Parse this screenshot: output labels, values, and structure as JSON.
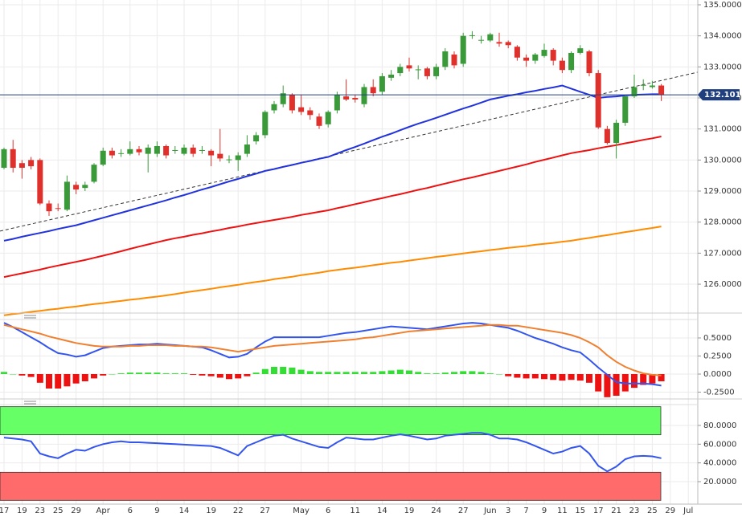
{
  "chart_data": [
    {
      "type": "candlestick",
      "categories": [
        "17",
        null,
        "19",
        null,
        "23",
        null,
        "25",
        null,
        "29",
        null,
        null,
        "Apr",
        null,
        null,
        "6",
        null,
        null,
        "9",
        null,
        null,
        "14",
        null,
        null,
        "19",
        null,
        null,
        "22",
        null,
        null,
        "27",
        null,
        null,
        null,
        "May",
        null,
        null,
        "6",
        null,
        null,
        "11",
        null,
        null,
        "14",
        null,
        null,
        "19",
        null,
        null,
        "24",
        null,
        null,
        "27",
        null,
        null,
        "Jun",
        null,
        "3",
        null,
        "7",
        null,
        "9",
        null,
        "11",
        null,
        "15",
        null,
        "17",
        null,
        "21",
        null,
        "23",
        null,
        "25",
        null,
        "29",
        null,
        "Jul"
      ],
      "open": [
        129.75,
        130.35,
        129.9,
        130.0,
        130.0,
        128.6,
        128.45,
        128.4,
        129.2,
        129.1,
        129.3,
        129.85,
        130.3,
        130.2,
        130.2,
        130.35,
        130.2,
        130.2,
        130.45,
        130.3,
        130.2,
        130.4,
        130.3,
        130.3,
        130.2,
        130.0,
        130.0,
        130.2,
        130.6,
        130.8,
        131.6,
        131.8,
        132.1,
        131.7,
        131.6,
        131.4,
        131.15,
        131.6,
        132.05,
        132.0,
        131.8,
        132.35,
        132.2,
        132.65,
        132.8,
        133.05,
        132.9,
        132.95,
        132.7,
        133.0,
        133.4,
        133.1,
        134.0,
        133.85,
        133.85,
        133.8,
        133.8,
        133.65,
        133.3,
        133.2,
        133.35,
        133.55,
        133.2,
        132.9,
        133.45,
        133.5,
        132.8,
        131.0,
        130.55,
        131.2,
        132.05,
        132.4,
        132.35,
        132.4,
        null,
        null,
        null
      ],
      "high": [
        130.4,
        130.65,
        130.0,
        130.1,
        130.05,
        128.7,
        128.6,
        129.5,
        129.3,
        129.3,
        129.9,
        130.4,
        130.4,
        130.35,
        130.6,
        130.45,
        130.5,
        130.6,
        130.5,
        130.45,
        130.5,
        130.5,
        130.45,
        130.35,
        131.0,
        130.15,
        130.25,
        130.8,
        130.9,
        131.6,
        131.9,
        132.4,
        132.15,
        132.1,
        131.7,
        131.5,
        131.6,
        132.2,
        132.6,
        132.1,
        132.45,
        132.6,
        132.8,
        132.9,
        133.1,
        133.3,
        133.05,
        133.0,
        133.1,
        133.6,
        133.5,
        134.1,
        134.15,
        134.0,
        134.1,
        134.1,
        133.85,
        133.7,
        133.4,
        133.45,
        133.75,
        133.6,
        133.3,
        133.5,
        133.7,
        133.55,
        132.9,
        131.1,
        131.3,
        132.1,
        132.75,
        132.6,
        132.55,
        132.45,
        null,
        null,
        null
      ],
      "low": [
        129.7,
        129.6,
        129.4,
        129.7,
        128.55,
        128.2,
        128.35,
        128.35,
        128.9,
        129.0,
        129.25,
        129.8,
        130.05,
        130.1,
        130.15,
        130.15,
        129.6,
        130.1,
        130.05,
        130.2,
        130.15,
        130.1,
        130.2,
        129.8,
        129.95,
        129.9,
        129.65,
        130.1,
        130.5,
        130.7,
        131.5,
        131.7,
        131.5,
        131.45,
        131.3,
        131.0,
        131.05,
        131.5,
        131.9,
        131.85,
        131.7,
        132.05,
        132.1,
        132.55,
        132.7,
        132.85,
        132.6,
        132.6,
        132.6,
        132.9,
        132.95,
        133.0,
        133.9,
        133.75,
        133.8,
        133.65,
        133.6,
        133.2,
        133.0,
        133.1,
        133.3,
        133.05,
        132.8,
        132.8,
        133.4,
        132.7,
        131.0,
        130.5,
        130.05,
        131.1,
        132.0,
        132.25,
        132.3,
        131.9,
        null,
        null,
        null
      ],
      "close": [
        130.35,
        129.75,
        129.75,
        129.8,
        128.6,
        128.35,
        128.43,
        129.3,
        129.05,
        129.2,
        129.85,
        130.3,
        130.15,
        130.22,
        130.35,
        130.25,
        130.4,
        130.45,
        130.15,
        130.32,
        130.4,
        130.2,
        130.32,
        130.15,
        130.05,
        130.02,
        130.15,
        130.5,
        130.8,
        131.55,
        131.8,
        132.15,
        131.6,
        131.55,
        131.45,
        131.1,
        131.55,
        132.1,
        131.95,
        131.95,
        132.35,
        132.15,
        132.7,
        132.75,
        133.0,
        132.95,
        132.92,
        132.7,
        133.0,
        133.5,
        133.05,
        134.0,
        134.02,
        133.87,
        134.05,
        133.75,
        133.7,
        133.3,
        133.2,
        133.4,
        133.55,
        133.2,
        132.9,
        133.45,
        133.6,
        132.8,
        131.05,
        130.55,
        131.2,
        132.05,
        132.35,
        132.42,
        132.4,
        132.1,
        null,
        null,
        null
      ],
      "up_color": "#3a9a3a",
      "down_color": "#e0302b",
      "lines": [
        {
          "color": "#2233dd",
          "values": [
            127.4,
            127.46,
            127.53,
            127.59,
            127.65,
            127.71,
            127.78,
            127.84,
            127.9,
            127.98,
            128.06,
            128.14,
            128.22,
            128.3,
            128.38,
            128.46,
            128.54,
            128.62,
            128.7,
            128.79,
            128.87,
            128.96,
            129.05,
            129.13,
            129.22,
            129.31,
            129.39,
            129.48,
            129.56,
            129.65,
            129.71,
            129.78,
            129.84,
            129.91,
            129.97,
            130.04,
            130.1,
            130.21,
            130.32,
            130.42,
            130.53,
            130.64,
            130.75,
            130.85,
            130.96,
            131.07,
            131.17,
            131.26,
            131.36,
            131.46,
            131.56,
            131.66,
            131.75,
            131.85,
            131.95,
            132.01,
            132.07,
            132.12,
            132.18,
            132.23,
            132.29,
            132.34,
            132.4,
            132.3,
            132.2,
            132.1,
            132.0,
            132.03,
            132.05,
            132.08,
            132.1,
            132.11,
            132.12,
            132.12,
            null,
            null,
            null
          ]
        },
        {
          "color": "#ee1111",
          "values": [
            126.23,
            126.29,
            126.35,
            126.41,
            126.47,
            126.54,
            126.6,
            126.66,
            126.72,
            126.78,
            126.85,
            126.92,
            126.99,
            127.06,
            127.14,
            127.21,
            127.28,
            127.35,
            127.42,
            127.48,
            127.53,
            127.59,
            127.64,
            127.7,
            127.75,
            127.81,
            127.86,
            127.92,
            127.97,
            128.02,
            128.07,
            128.12,
            128.17,
            128.23,
            128.28,
            128.33,
            128.38,
            128.45,
            128.51,
            128.58,
            128.64,
            128.71,
            128.77,
            128.84,
            128.9,
            128.97,
            129.04,
            129.1,
            129.17,
            129.24,
            129.31,
            129.38,
            129.44,
            129.51,
            129.58,
            129.65,
            129.72,
            129.79,
            129.86,
            129.94,
            130.01,
            130.08,
            130.15,
            130.22,
            130.27,
            130.32,
            130.38,
            130.43,
            130.48,
            130.54,
            130.59,
            130.65,
            130.7,
            130.76,
            null,
            null,
            null
          ]
        },
        {
          "color": "#ff8c00",
          "values": [
            125.0,
            125.04,
            125.07,
            125.11,
            125.14,
            125.18,
            125.21,
            125.25,
            125.28,
            125.32,
            125.36,
            125.39,
            125.43,
            125.46,
            125.5,
            125.53,
            125.57,
            125.6,
            125.64,
            125.68,
            125.73,
            125.77,
            125.81,
            125.85,
            125.9,
            125.94,
            125.98,
            126.03,
            126.07,
            126.11,
            126.16,
            126.2,
            126.24,
            126.29,
            126.33,
            126.37,
            126.42,
            126.46,
            126.5,
            126.53,
            126.57,
            126.61,
            126.65,
            126.69,
            126.72,
            126.76,
            126.8,
            126.84,
            126.88,
            126.91,
            126.95,
            126.99,
            127.03,
            127.06,
            127.1,
            127.13,
            127.17,
            127.2,
            127.23,
            127.27,
            127.3,
            127.33,
            127.37,
            127.4,
            127.45,
            127.49,
            127.54,
            127.58,
            127.63,
            127.68,
            127.72,
            127.77,
            127.81,
            127.86,
            null,
            null,
            null
          ]
        }
      ],
      "trendline": {
        "from": 127.71,
        "to": 132.83,
        "color": "#333333",
        "dashed": true
      },
      "last_price": {
        "value": 132.101,
        "label": "132.1010",
        "color": "#1f3f7f"
      },
      "ylim": [
        125.07,
        135.155
      ],
      "yticks": [
        {
          "value": 135,
          "label": "135.0000"
        },
        {
          "value": 134,
          "label": "134.0000"
        },
        {
          "value": 133,
          "label": "133.0000"
        },
        {
          "value": 132,
          "label": "132.0000"
        },
        {
          "value": 131,
          "label": "131.0000"
        },
        {
          "value": 130,
          "label": "130.0000"
        },
        {
          "value": 129,
          "label": "129.0000"
        },
        {
          "value": 128,
          "label": "128.0000"
        },
        {
          "value": 127,
          "label": "127.0000"
        },
        {
          "value": 126,
          "label": "126.0000"
        }
      ],
      "grid": true
    },
    {
      "type": "macd",
      "histogram": [
        0.03,
        0.0,
        -0.02,
        -0.04,
        -0.12,
        -0.2,
        -0.2,
        -0.17,
        -0.13,
        -0.1,
        -0.06,
        -0.02,
        0.0,
        0.01,
        0.02,
        0.02,
        0.02,
        0.02,
        0.01,
        0.01,
        0.01,
        -0.01,
        -0.02,
        -0.03,
        -0.05,
        -0.07,
        -0.06,
        -0.03,
        0.02,
        0.07,
        0.1,
        0.1,
        0.09,
        0.06,
        0.04,
        0.03,
        0.03,
        0.03,
        0.03,
        0.03,
        0.03,
        0.03,
        0.04,
        0.05,
        0.06,
        0.05,
        0.03,
        0.01,
        0.01,
        0.02,
        0.03,
        0.04,
        0.04,
        0.03,
        0.01,
        0.0,
        -0.03,
        -0.05,
        -0.06,
        -0.06,
        -0.07,
        -0.08,
        -0.09,
        -0.08,
        -0.09,
        -0.12,
        -0.24,
        -0.32,
        -0.3,
        -0.24,
        -0.19,
        -0.15,
        -0.13,
        -0.1
      ],
      "up_color": "#33dd33",
      "down_color": "#ee1111",
      "lines": [
        {
          "color": "#3355ee",
          "values": [
            0.71,
            0.65,
            0.58,
            0.51,
            0.44,
            0.36,
            0.29,
            0.27,
            0.24,
            0.26,
            0.31,
            0.36,
            0.38,
            0.39,
            0.4,
            0.41,
            0.41,
            0.42,
            0.41,
            0.4,
            0.39,
            0.38,
            0.37,
            0.33,
            0.28,
            0.23,
            0.24,
            0.28,
            0.37,
            0.45,
            0.51,
            0.51,
            0.51,
            0.51,
            0.51,
            0.51,
            0.53,
            0.55,
            0.57,
            0.58,
            0.6,
            0.62,
            0.64,
            0.66,
            0.65,
            0.64,
            0.63,
            0.62,
            0.64,
            0.66,
            0.68,
            0.7,
            0.71,
            0.7,
            0.68,
            0.66,
            0.64,
            0.6,
            0.55,
            0.5,
            0.46,
            0.42,
            0.37,
            0.33,
            0.3,
            0.2,
            0.09,
            -0.01,
            -0.11,
            -0.13,
            -0.13,
            -0.13,
            -0.14,
            -0.16
          ]
        },
        {
          "color": "#f08030",
          "values": [
            0.68,
            0.65,
            0.62,
            0.59,
            0.56,
            0.52,
            0.49,
            0.46,
            0.43,
            0.41,
            0.39,
            0.38,
            0.38,
            0.38,
            0.39,
            0.39,
            0.4,
            0.4,
            0.4,
            0.39,
            0.39,
            0.38,
            0.38,
            0.37,
            0.35,
            0.33,
            0.31,
            0.33,
            0.35,
            0.37,
            0.39,
            0.4,
            0.41,
            0.42,
            0.43,
            0.44,
            0.45,
            0.46,
            0.47,
            0.48,
            0.5,
            0.51,
            0.53,
            0.55,
            0.57,
            0.59,
            0.6,
            0.61,
            0.62,
            0.63,
            0.64,
            0.65,
            0.66,
            0.67,
            0.68,
            0.68,
            0.67,
            0.67,
            0.65,
            0.63,
            0.61,
            0.59,
            0.57,
            0.54,
            0.5,
            0.44,
            0.37,
            0.26,
            0.17,
            0.1,
            0.05,
            0.01,
            -0.01,
            -0.02
          ]
        }
      ],
      "ylim": [
        -0.322,
        0.733
      ],
      "yticks": [
        {
          "value": 0.5,
          "label": "0.5000"
        },
        {
          "value": 0.25,
          "label": "0.2500"
        },
        {
          "value": 0,
          "label": "0.0000"
        },
        {
          "value": -0.25,
          "label": "-0.2500"
        }
      ],
      "grid": true
    },
    {
      "type": "rsi",
      "bands": [
        {
          "from": 70,
          "to": 100,
          "color": "#66ff66"
        },
        {
          "from": 0,
          "to": 30,
          "color": "#ff6b6b"
        }
      ],
      "lines": [
        {
          "color": "#3355ee",
          "values": [
            67,
            66,
            65,
            63,
            50,
            47,
            45,
            50,
            54,
            53,
            57,
            60,
            62,
            63,
            62,
            62,
            61.5,
            61,
            60.5,
            60,
            59.5,
            59,
            58.5,
            58,
            56,
            52,
            48,
            58,
            62,
            66,
            69,
            70,
            66,
            63,
            60,
            57,
            56,
            62,
            67,
            66,
            65,
            65,
            67,
            69,
            70.5,
            69,
            67,
            65,
            66,
            69,
            70,
            71,
            72,
            72,
            70,
            66,
            66,
            65,
            62,
            58,
            54,
            50,
            52,
            56,
            58,
            50,
            37,
            31,
            36,
            44,
            47,
            47.5,
            47,
            45
          ]
        }
      ],
      "ylim": [
        -4,
        101.4
      ],
      "yticks": [
        {
          "value": 80,
          "label": "80.0000"
        },
        {
          "value": 60,
          "label": "60.0000"
        },
        {
          "value": 40,
          "label": "40.0000"
        },
        {
          "value": 20,
          "label": "20.0000"
        }
      ],
      "grid": true
    }
  ]
}
